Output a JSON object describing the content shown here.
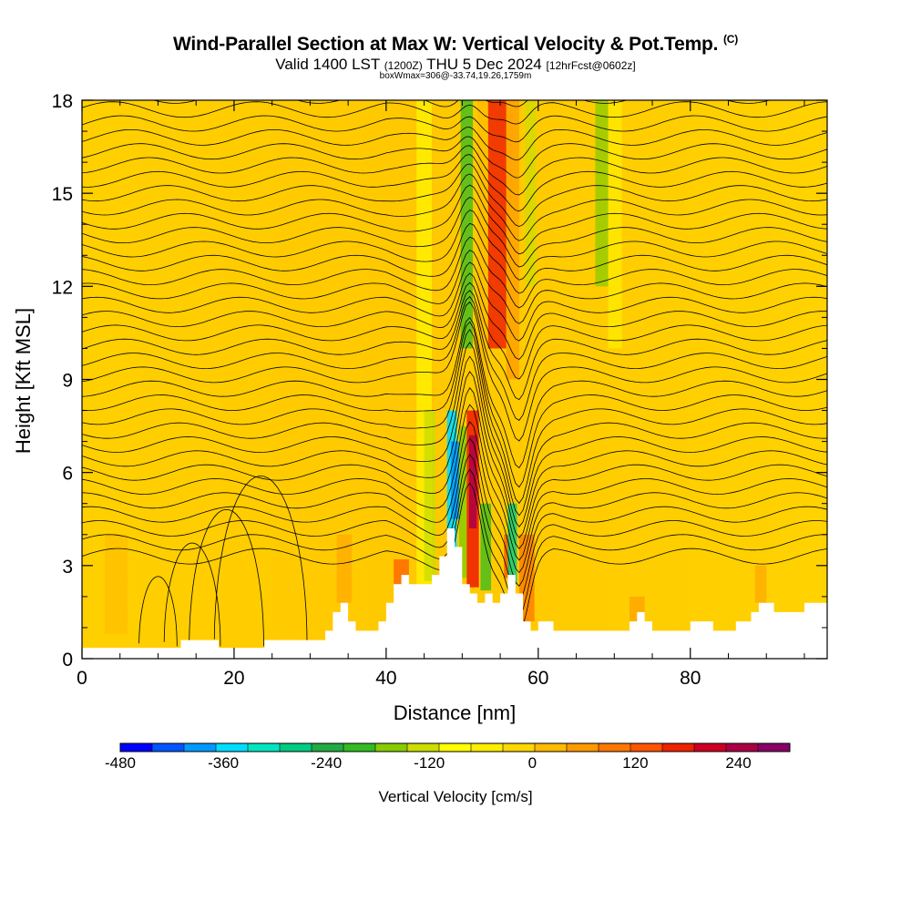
{
  "header": {
    "title": "Wind-Parallel Section at Max W: Vertical Velocity & Pot.Temp.",
    "copyright": "(C)",
    "subtitle_main": "Valid 1400 LST",
    "subtitle_utc": "(1200Z)",
    "subtitle_date": "THU 5 Dec 2024",
    "subtitle_fcst": "[12hrFcst@0602z]",
    "info": "boxWmax=306@-33.74,19.26,1759m"
  },
  "chart_data": {
    "type": "heatmap",
    "title": "Wind-Parallel Section at Max W: Vertical Velocity & Pot.Temp.",
    "xlabel": "Distance [nm]",
    "ylabel": "Height [Kft MSL]",
    "xlim": [
      0,
      98
    ],
    "ylim": [
      0,
      18
    ],
    "x_ticks": [
      "0",
      "20",
      "40",
      "60",
      "80"
    ],
    "x_tick_values": [
      0,
      20,
      40,
      60,
      80
    ],
    "y_ticks": [
      "0",
      "3",
      "6",
      "9",
      "12",
      "15",
      "18"
    ],
    "y_tick_values": [
      0,
      3,
      6,
      9,
      12,
      15,
      18
    ],
    "colorbar": {
      "label": "Vertical Velocity [cm/s]",
      "min": -480,
      "max": 300,
      "step": 40,
      "tick_labels": [
        "-480",
        "-360",
        "-240",
        "-120",
        "0",
        "120",
        "240"
      ],
      "tick_values": [
        -480,
        -360,
        -240,
        -120,
        0,
        120,
        240
      ],
      "colors": [
        "#0000ff",
        "#0055ff",
        "#0099ff",
        "#00ddff",
        "#00e5c0",
        "#00cc80",
        "#22aa44",
        "#33bb22",
        "#88cc00",
        "#ccdd00",
        "#ffff00",
        "#ffee00",
        "#ffd700",
        "#ffbb00",
        "#ff9900",
        "#ff7700",
        "#ff5500",
        "#ee2200",
        "#cc0022",
        "#aa0044",
        "#880066"
      ]
    },
    "terrain_kft": [
      [
        0,
        0.35
      ],
      [
        13,
        0.35
      ],
      [
        13,
        0.6
      ],
      [
        18,
        0.6
      ],
      [
        18,
        0.35
      ],
      [
        24,
        0.35
      ],
      [
        24,
        0.6
      ],
      [
        28,
        0.6
      ],
      [
        28,
        0.6
      ],
      [
        32,
        0.6
      ],
      [
        32,
        0.9
      ],
      [
        33,
        0.9
      ],
      [
        33,
        1.5
      ],
      [
        34,
        1.5
      ],
      [
        34,
        1.8
      ],
      [
        35,
        1.8
      ],
      [
        35,
        1.2
      ],
      [
        36,
        1.2
      ],
      [
        36,
        0.9
      ],
      [
        39,
        0.9
      ],
      [
        39,
        1.2
      ],
      [
        40,
        1.2
      ],
      [
        40,
        1.8
      ],
      [
        41,
        1.8
      ],
      [
        41,
        2.4
      ],
      [
        42,
        2.4
      ],
      [
        42,
        2.7
      ],
      [
        43,
        2.7
      ],
      [
        43,
        2.4
      ],
      [
        46,
        2.4
      ],
      [
        46,
        2.7
      ],
      [
        47,
        2.7
      ],
      [
        47,
        3.3
      ],
      [
        48,
        3.3
      ],
      [
        48,
        4.2
      ],
      [
        49,
        4.2
      ],
      [
        49,
        3.6
      ],
      [
        50,
        3.6
      ],
      [
        50,
        2.4
      ],
      [
        51,
        2.4
      ],
      [
        51,
        2.1
      ],
      [
        52,
        2.1
      ],
      [
        52,
        1.8
      ],
      [
        53,
        1.8
      ],
      [
        53,
        2.1
      ],
      [
        54,
        2.1
      ],
      [
        54,
        1.8
      ],
      [
        55,
        1.8
      ],
      [
        55,
        2.1
      ],
      [
        56,
        2.1
      ],
      [
        56,
        2.7
      ],
      [
        57,
        2.7
      ],
      [
        57,
        2.1
      ],
      [
        58,
        2.1
      ],
      [
        58,
        1.2
      ],
      [
        59,
        1.2
      ],
      [
        59,
        0.9
      ],
      [
        60,
        0.9
      ],
      [
        60,
        1.2
      ],
      [
        62,
        1.2
      ],
      [
        62,
        0.9
      ],
      [
        72,
        0.9
      ],
      [
        72,
        1.2
      ],
      [
        73,
        1.2
      ],
      [
        73,
        1.5
      ],
      [
        74,
        1.5
      ],
      [
        74,
        1.2
      ],
      [
        75,
        1.2
      ],
      [
        75,
        0.9
      ],
      [
        80,
        0.9
      ],
      [
        80,
        1.2
      ],
      [
        83,
        1.2
      ],
      [
        83,
        0.9
      ],
      [
        86,
        0.9
      ],
      [
        86,
        1.2
      ],
      [
        88,
        1.2
      ],
      [
        88,
        1.5
      ],
      [
        89,
        1.5
      ],
      [
        89,
        1.8
      ],
      [
        91,
        1.8
      ],
      [
        91,
        1.5
      ],
      [
        95,
        1.5
      ],
      [
        95,
        1.8
      ],
      [
        98,
        1.8
      ]
    ]
  }
}
